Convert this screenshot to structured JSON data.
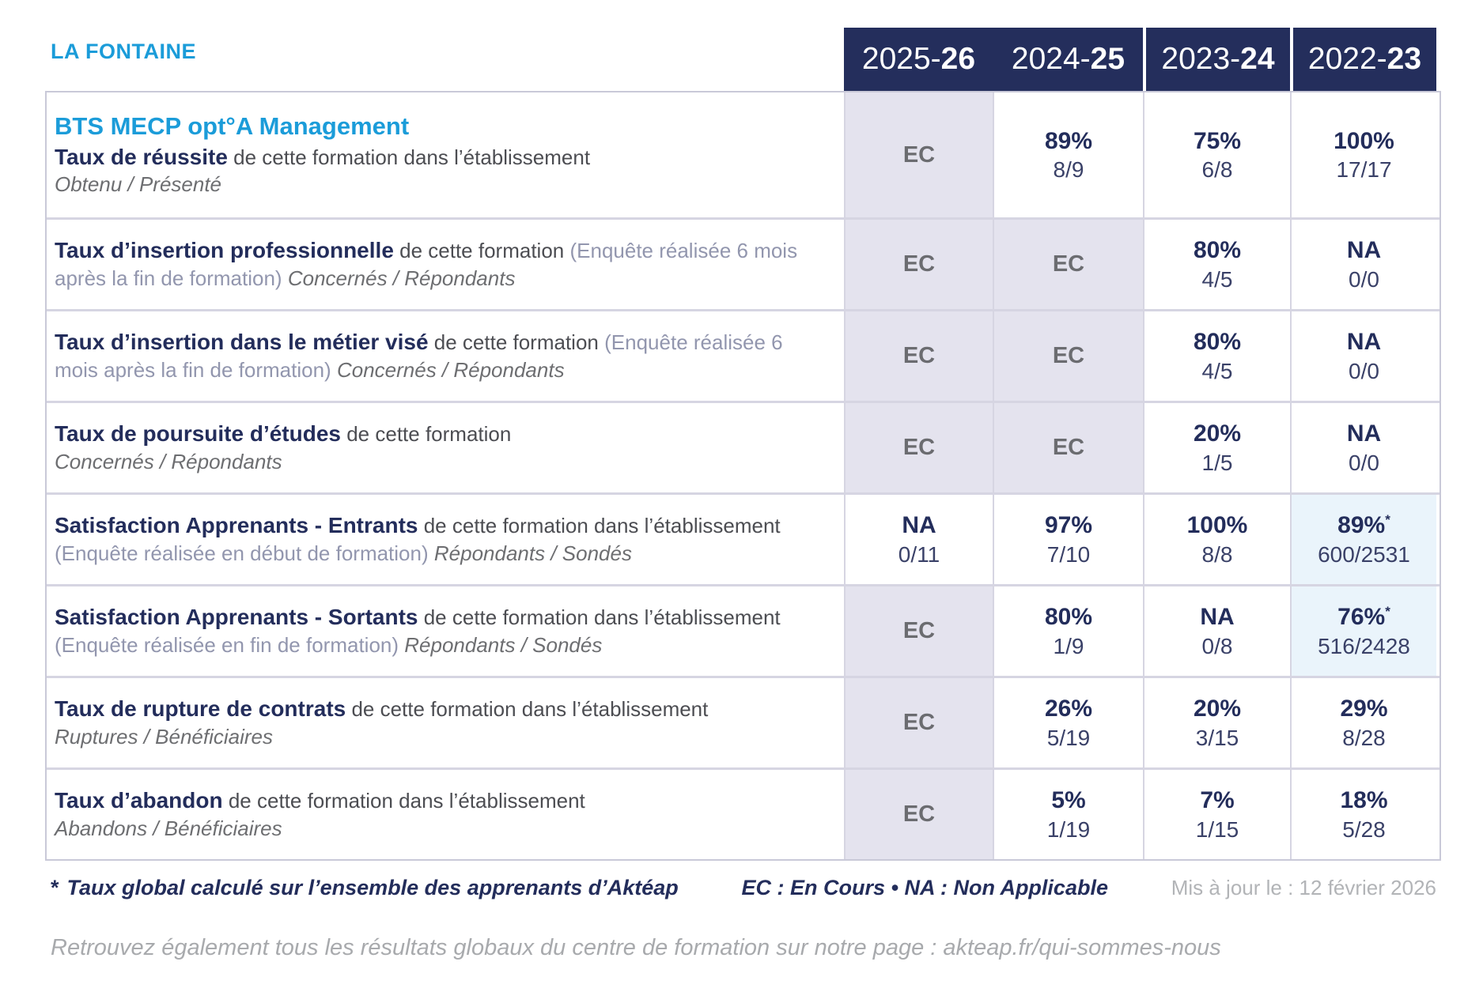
{
  "brand": {
    "name": "LA FONTAINE",
    "color": "#1b9cd9"
  },
  "colors": {
    "accent_blue": "#1b9cd9",
    "navy": "#242e5c",
    "ec_cell_bg": "#e4e3ee",
    "starred_cell_bg": "#eaf4fb",
    "border": "#d6d5e2"
  },
  "header": {
    "years": [
      {
        "prefix": "2025-",
        "suffix": "26"
      },
      {
        "prefix": "2024-",
        "suffix": "25"
      },
      {
        "prefix": "2023-",
        "suffix": "24"
      },
      {
        "prefix": "2022-",
        "suffix": "23"
      }
    ]
  },
  "table": {
    "rows": [
      {
        "course": "BTS MECP opt°A Management",
        "title": "Taux de réussite",
        "desc": "de cette formation dans l’établissement",
        "sub": "Obtenu / Présenté",
        "values": [
          {
            "text": "EC"
          },
          {
            "pct": "89%",
            "frac": "8/9"
          },
          {
            "pct": "75%",
            "frac": "6/8"
          },
          {
            "pct": "100%",
            "frac": "17/17"
          }
        ]
      },
      {
        "title": "Taux d’insertion professionnelle",
        "desc": "de cette formation",
        "paren": "(Enquête réalisée 6 mois après la fin de formation)",
        "sub": "Concernés / Répondants",
        "values": [
          {
            "text": "EC"
          },
          {
            "text": "EC"
          },
          {
            "pct": "80%",
            "frac": "4/5"
          },
          {
            "pct": "NA",
            "frac": "0/0"
          }
        ]
      },
      {
        "title": "Taux d’insertion dans le métier visé",
        "desc": "de cette formation",
        "paren": "(Enquête réalisée 6 mois après la fin de formation)",
        "sub": "Concernés / Répondants",
        "values": [
          {
            "text": "EC"
          },
          {
            "text": "EC"
          },
          {
            "pct": "80%",
            "frac": "4/5"
          },
          {
            "pct": "NA",
            "frac": "0/0"
          }
        ]
      },
      {
        "title": "Taux de poursuite d’études",
        "desc": "de cette formation",
        "sub": "Concernés / Répondants",
        "values": [
          {
            "text": "EC"
          },
          {
            "text": "EC"
          },
          {
            "pct": "20%",
            "frac": "1/5"
          },
          {
            "pct": "NA",
            "frac": "0/0"
          }
        ]
      },
      {
        "title": "Satisfaction Apprenants - Entrants",
        "desc": "de cette formation dans l’établissement",
        "paren": "(Enquête réalisée en début de formation)",
        "sub": "Répondants / Sondés",
        "values": [
          {
            "pct": "NA",
            "frac": "0/11"
          },
          {
            "pct": "97%",
            "frac": "7/10"
          },
          {
            "pct": "100%",
            "frac": "8/8"
          },
          {
            "pct": "89%",
            "note": "*",
            "frac": "600/2531"
          }
        ]
      },
      {
        "title": "Satisfaction Apprenants - Sortants",
        "desc": "de cette formation dans l’établissement",
        "paren": "(Enquête réalisée en fin de formation)",
        "sub": "Répondants / Sondés",
        "values": [
          {
            "text": "EC"
          },
          {
            "pct": "80%",
            "frac": "1/9"
          },
          {
            "pct": "NA",
            "frac": "0/8"
          },
          {
            "pct": "76%",
            "note": "*",
            "frac": "516/2428"
          }
        ]
      },
      {
        "title": "Taux de rupture de contrats",
        "desc": "de cette formation dans l’établissement",
        "sub": "Ruptures / Bénéficiaires",
        "values": [
          {
            "text": "EC"
          },
          {
            "pct": "26%",
            "frac": "5/19"
          },
          {
            "pct": "20%",
            "frac": "3/15"
          },
          {
            "pct": "29%",
            "frac": "8/28"
          }
        ]
      },
      {
        "title": "Taux d’abandon",
        "desc": "de cette formation dans l’établissement",
        "sub": "Abandons / Bénéficiaires",
        "values": [
          {
            "text": "EC"
          },
          {
            "pct": "5%",
            "frac": "1/19"
          },
          {
            "pct": "7%",
            "frac": "1/15"
          },
          {
            "pct": "18%",
            "frac": "5/28"
          }
        ]
      }
    ]
  },
  "footer": {
    "star": "*",
    "note": "Taux global calculé sur l’ensemble des apprenants d’Aktéap",
    "legend": "EC : En Cours  •  NA : Non Applicable",
    "updated": "Mis à jour le : 12 février 2026",
    "bottom": "Retrouvez également tous les résultats globaux du centre de formation sur notre page : akteap.fr/qui-sommes-nous"
  }
}
